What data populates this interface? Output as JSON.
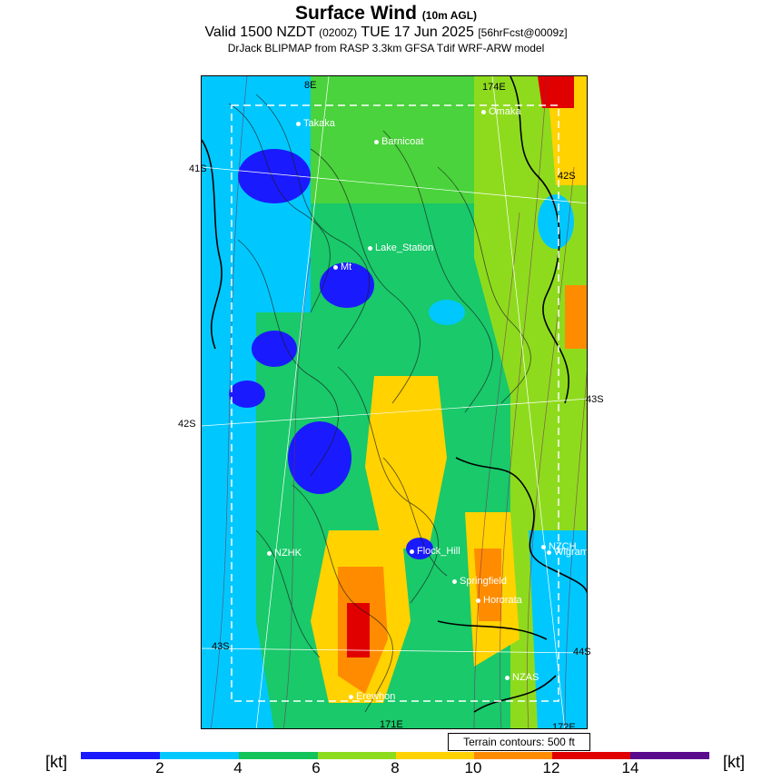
{
  "header": {
    "title": "Surface Wind",
    "title_suffix": "(10m AGL)",
    "valid_prefix": "Valid 1500 NZDT",
    "valid_utc": "(0200Z)",
    "valid_date": "TUE 17 Jun 2025",
    "forecast": "[56hrFcst@0009z]",
    "model": "DrJack BLIPMAP from RASP 3.3km GFSA Tdif WRF-ARW model"
  },
  "map": {
    "lat_labels": [
      "41S",
      "42S",
      "42S",
      "43S",
      "43S",
      "44S"
    ],
    "lon_labels": [
      "8E",
      "174E",
      "171E",
      "172E"
    ],
    "sites": [
      "Takaka",
      "Barnicoat",
      "Omaka",
      "Lake_Station",
      "Mt",
      "NZHK",
      "Flock_Hill",
      "NZCH",
      "Wigram",
      "Springfield",
      "Hororata",
      "NZAS",
      "Erewhon"
    ]
  },
  "terrain_note": "Terrain contours: 500 ft",
  "legend": {
    "unit": "[kt]",
    "ticks": [
      "2",
      "4",
      "6",
      "8",
      "10",
      "12",
      "14"
    ],
    "colors": [
      "#1a1aff",
      "#00c8ff",
      "#12c25a",
      "#8edb1e",
      "#ffd200",
      "#ff8c00",
      "#e00000",
      "#5a0a8c"
    ]
  }
}
